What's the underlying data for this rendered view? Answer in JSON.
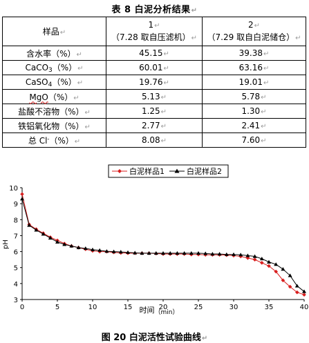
{
  "table": {
    "title": "表 8   白泥分析结果",
    "header": {
      "label": "样品",
      "col1": {
        "num": "1",
        "desc": "（7.28 取自压滤机）"
      },
      "col2": {
        "num": "2",
        "desc": "（7.29 取自白泥储仓）"
      }
    },
    "rows": [
      {
        "name": "含水率（%）",
        "v1": "45.15",
        "v2": "39.38"
      },
      {
        "name_parts": [
          "CaCO",
          "3",
          "（%）"
        ],
        "v1": "60.01",
        "v2": "63.16"
      },
      {
        "name_parts": [
          "CaSO",
          "4",
          "（%）"
        ],
        "v1": "19.76",
        "v2": "19.01"
      },
      {
        "name_parts": [
          "MgO",
          "（%）"
        ],
        "v1": "5.13",
        "v2": "5.78"
      },
      {
        "name": "盐酸不溶物（%）",
        "v1": "1.25",
        "v2": "1.30"
      },
      {
        "name": "铁铝氧化物（%）",
        "v1": "2.77",
        "v2": "2.41"
      },
      {
        "name_parts": [
          "总 Cl",
          "-",
          "（%）"
        ],
        "v1": "8.08",
        "v2": "7.60"
      }
    ],
    "return_mark": "↵"
  },
  "chart_data": {
    "type": "line",
    "title": "",
    "xlabel_main": "时间",
    "xlabel_unit": "（min）",
    "ylabel": "pH",
    "xlim": [
      0,
      40
    ],
    "ylim": [
      3,
      10
    ],
    "xticks": [
      0,
      5,
      10,
      15,
      20,
      25,
      30,
      35,
      40
    ],
    "yticks": [
      3,
      4,
      5,
      6,
      7,
      8,
      9,
      10
    ],
    "grid": false,
    "legend_position": "top-center",
    "x": [
      0,
      1,
      2,
      3,
      4,
      5,
      6,
      7,
      8,
      9,
      10,
      11,
      12,
      13,
      14,
      15,
      16,
      17,
      18,
      19,
      20,
      21,
      22,
      23,
      24,
      25,
      26,
      27,
      28,
      29,
      30,
      31,
      32,
      33,
      34,
      35,
      36,
      37,
      38,
      39,
      40
    ],
    "series": [
      {
        "name": "白泥样品1",
        "color": "#d81e1e",
        "marker": "diamond",
        "values": [
          9.6,
          7.7,
          7.4,
          7.15,
          6.9,
          6.7,
          6.5,
          6.35,
          6.25,
          6.15,
          6.05,
          6.0,
          6.0,
          5.95,
          5.92,
          5.9,
          5.9,
          5.9,
          5.9,
          5.88,
          5.85,
          5.85,
          5.85,
          5.85,
          5.82,
          5.82,
          5.8,
          5.8,
          5.8,
          5.78,
          5.75,
          5.7,
          5.6,
          5.5,
          5.3,
          5.1,
          4.75,
          4.2,
          3.8,
          3.45,
          3.3
        ]
      },
      {
        "name": "白泥样品2",
        "color": "#000000",
        "marker": "triangle",
        "values": [
          9.3,
          7.65,
          7.35,
          7.1,
          6.85,
          6.6,
          6.45,
          6.35,
          6.25,
          6.2,
          6.12,
          6.08,
          6.02,
          6.0,
          5.98,
          5.95,
          5.92,
          5.9,
          5.9,
          5.9,
          5.9,
          5.9,
          5.9,
          5.9,
          5.9,
          5.9,
          5.88,
          5.85,
          5.85,
          5.82,
          5.82,
          5.8,
          5.75,
          5.7,
          5.55,
          5.35,
          5.2,
          4.9,
          4.5,
          3.85,
          3.5
        ]
      }
    ]
  },
  "figure": {
    "caption": "图 20   白泥活性试验曲线"
  }
}
